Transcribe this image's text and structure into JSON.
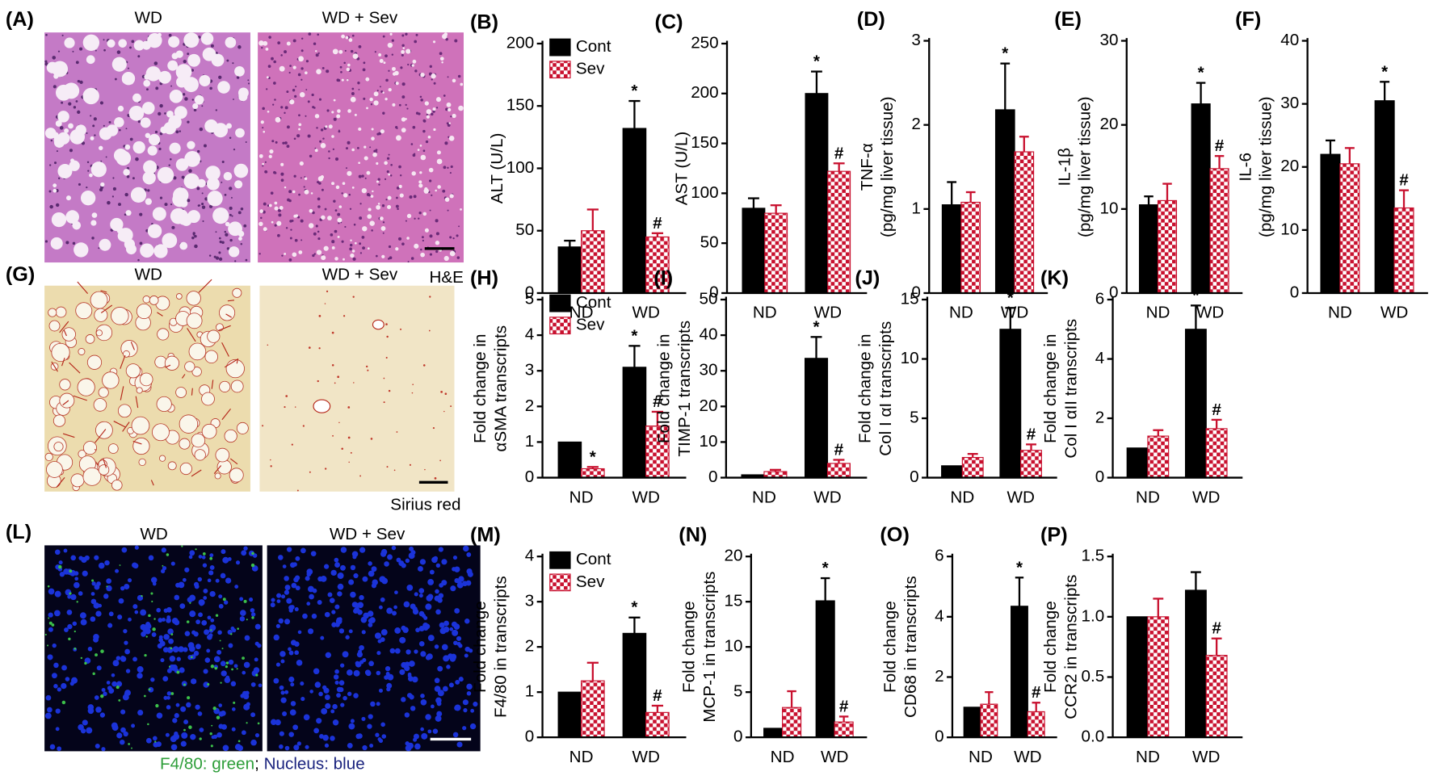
{
  "chart_data": [
    {
      "type": "bar",
      "panel": "(B)",
      "ylabel": [
        "ALT (U/L)"
      ],
      "categories": [
        "ND",
        "WD"
      ],
      "ylim": [
        0,
        200
      ],
      "yticks": [
        0,
        50,
        100,
        150,
        200
      ],
      "legend": "upper left",
      "series": [
        {
          "name": "Cont",
          "color": "#000000",
          "values": [
            37,
            132
          ],
          "errors": [
            5,
            22
          ],
          "markers": [
            null,
            "*"
          ]
        },
        {
          "name": "Sev",
          "color": "#c8102e",
          "values": [
            50,
            45
          ],
          "errors": [
            17,
            3
          ],
          "markers": [
            null,
            "#"
          ]
        }
      ]
    },
    {
      "type": "bar",
      "panel": "(C)",
      "ylabel": [
        "AST (U/L)"
      ],
      "categories": [
        "ND",
        "WD"
      ],
      "ylim": [
        0,
        250
      ],
      "yticks": [
        0,
        50,
        100,
        150,
        200,
        250
      ],
      "series": [
        {
          "color": "#000000",
          "values": [
            85,
            200
          ],
          "errors": [
            10,
            22
          ],
          "markers": [
            null,
            "*"
          ]
        },
        {
          "color": "#c8102e",
          "values": [
            80,
            122
          ],
          "errors": [
            8,
            8
          ],
          "markers": [
            null,
            "#"
          ]
        }
      ]
    },
    {
      "type": "bar",
      "panel": "(D)",
      "ylabel": [
        "TNF-α",
        "(pg/mg liver tissue)"
      ],
      "categories": [
        "ND",
        "WD"
      ],
      "ylim": [
        0,
        3
      ],
      "yticks": [
        0,
        1,
        2,
        3
      ],
      "series": [
        {
          "color": "#000000",
          "values": [
            1.05,
            2.18
          ],
          "errors": [
            0.27,
            0.55
          ],
          "markers": [
            null,
            "*"
          ]
        },
        {
          "color": "#c8102e",
          "values": [
            1.08,
            1.68
          ],
          "errors": [
            0.12,
            0.18
          ],
          "markers": [
            null,
            null
          ]
        }
      ]
    },
    {
      "type": "bar",
      "panel": "(E)",
      "ylabel": [
        "IL-1β",
        "(pg/mg liver tissue)"
      ],
      "categories": [
        "ND",
        "WD"
      ],
      "ylim": [
        0,
        30
      ],
      "yticks": [
        0,
        10,
        20,
        30
      ],
      "series": [
        {
          "color": "#000000",
          "values": [
            10.5,
            22.5
          ],
          "errors": [
            1,
            2.5
          ],
          "markers": [
            null,
            "*"
          ]
        },
        {
          "color": "#c8102e",
          "values": [
            11,
            14.8
          ],
          "errors": [
            2,
            1.5
          ],
          "markers": [
            null,
            "#"
          ]
        }
      ]
    },
    {
      "type": "bar",
      "panel": "(F)",
      "ylabel": [
        "IL-6",
        "(pg/mg liver tissue)"
      ],
      "categories": [
        "ND",
        "WD"
      ],
      "ylim": [
        0,
        40
      ],
      "yticks": [
        0,
        10,
        20,
        30,
        40
      ],
      "series": [
        {
          "color": "#000000",
          "values": [
            22,
            30.5
          ],
          "errors": [
            2.2,
            3
          ],
          "markers": [
            null,
            "*"
          ]
        },
        {
          "color": "#c8102e",
          "values": [
            20.5,
            13.5
          ],
          "errors": [
            2.5,
            2.8
          ],
          "markers": [
            null,
            "#"
          ]
        }
      ]
    },
    {
      "type": "bar",
      "panel": "(H)",
      "ylabel": [
        "Fold change in",
        "αSMA transcripts"
      ],
      "categories": [
        "ND",
        "WD"
      ],
      "ylim": [
        0,
        5
      ],
      "yticks": [
        0,
        1,
        2,
        3,
        4,
        5
      ],
      "legend": "upper left",
      "series": [
        {
          "name": "Cont",
          "color": "#000000",
          "values": [
            1,
            3.1
          ],
          "errors": [
            null,
            0.6
          ],
          "markers": [
            null,
            "*"
          ]
        },
        {
          "name": "Sev",
          "color": "#c8102e",
          "values": [
            0.25,
            1.45
          ],
          "errors": [
            0.05,
            0.4
          ],
          "markers": [
            "*",
            "#"
          ]
        }
      ]
    },
    {
      "type": "bar",
      "panel": "(I)",
      "ylabel": [
        "Fold change in",
        "TIMP-1 transcripts"
      ],
      "categories": [
        "ND",
        "WD"
      ],
      "ylim": [
        0,
        50
      ],
      "yticks": [
        0,
        10,
        20,
        30,
        40,
        50
      ],
      "series": [
        {
          "color": "#000000",
          "values": [
            0.8,
            33.5
          ],
          "errors": [
            null,
            6
          ],
          "markers": [
            null,
            "*"
          ]
        },
        {
          "color": "#c8102e",
          "values": [
            1.7,
            4
          ],
          "errors": [
            0.5,
            1
          ],
          "markers": [
            null,
            "#"
          ]
        }
      ]
    },
    {
      "type": "bar",
      "panel": "(J)",
      "ylabel": [
        "Fold change in",
        "Col I αI transcripts"
      ],
      "categories": [
        "ND",
        "WD"
      ],
      "ylim": [
        0,
        15
      ],
      "yticks": [
        0,
        5,
        10,
        15
      ],
      "series": [
        {
          "color": "#000000",
          "values": [
            1,
            12.5
          ],
          "errors": [
            null,
            1.8
          ],
          "markers": [
            null,
            "*"
          ]
        },
        {
          "color": "#c8102e",
          "values": [
            1.7,
            2.3
          ],
          "errors": [
            0.3,
            0.5
          ],
          "markers": [
            null,
            "#"
          ]
        }
      ]
    },
    {
      "type": "bar",
      "panel": "(K)",
      "ylabel": [
        "Fold change in",
        "Col I αII transcripts"
      ],
      "categories": [
        "ND",
        "WD"
      ],
      "ylim": [
        0,
        6
      ],
      "yticks": [
        0,
        2,
        4,
        6
      ],
      "series": [
        {
          "color": "#000000",
          "values": [
            1,
            5
          ],
          "errors": [
            null,
            0.8
          ],
          "markers": [
            null,
            "*"
          ]
        },
        {
          "color": "#c8102e",
          "values": [
            1.4,
            1.65
          ],
          "errors": [
            0.2,
            0.3
          ],
          "markers": [
            null,
            "#"
          ]
        }
      ]
    },
    {
      "type": "bar",
      "panel": "(M)",
      "ylabel": [
        "Fold change",
        "F4/80 in  transcripts"
      ],
      "categories": [
        "ND",
        "WD"
      ],
      "ylim": [
        0,
        4
      ],
      "yticks": [
        0,
        1,
        2,
        3,
        4
      ],
      "legend": "upper left",
      "series": [
        {
          "name": "Cont",
          "color": "#000000",
          "values": [
            1,
            2.3
          ],
          "errors": [
            null,
            0.35
          ],
          "markers": [
            null,
            "*"
          ]
        },
        {
          "name": "Sev",
          "color": "#c8102e",
          "values": [
            1.25,
            0.55
          ],
          "errors": [
            0.4,
            0.15
          ],
          "markers": [
            null,
            "#"
          ]
        }
      ]
    },
    {
      "type": "bar",
      "panel": "(N)",
      "ylabel": [
        "Fold change",
        "MCP-1 in  transcripts"
      ],
      "categories": [
        "ND",
        "WD"
      ],
      "ylim": [
        0,
        20
      ],
      "yticks": [
        0,
        5,
        10,
        15,
        20
      ],
      "series": [
        {
          "color": "#000000",
          "values": [
            1,
            15.1
          ],
          "errors": [
            null,
            2.5
          ],
          "markers": [
            null,
            "*"
          ]
        },
        {
          "color": "#c8102e",
          "values": [
            3.3,
            1.7
          ],
          "errors": [
            1.8,
            0.6
          ],
          "markers": [
            null,
            "#"
          ]
        }
      ]
    },
    {
      "type": "bar",
      "panel": "(O)",
      "ylabel": [
        "Fold change",
        "CD68 in  transcripts"
      ],
      "categories": [
        "ND",
        "WD"
      ],
      "ylim": [
        0,
        6
      ],
      "yticks": [
        0,
        2,
        4,
        6
      ],
      "series": [
        {
          "color": "#000000",
          "values": [
            1,
            4.35
          ],
          "errors": [
            null,
            0.95
          ],
          "markers": [
            null,
            "*"
          ]
        },
        {
          "color": "#c8102e",
          "values": [
            1.1,
            0.85
          ],
          "errors": [
            0.4,
            0.3
          ],
          "markers": [
            null,
            "#"
          ]
        }
      ]
    },
    {
      "type": "bar",
      "panel": "(P)",
      "ylabel": [
        "Fold change",
        "CCR2 in  transcripts"
      ],
      "categories": [
        "ND",
        "WD"
      ],
      "ylim": [
        0,
        1.5
      ],
      "yticks": [
        {
          "value": 0,
          "label": "0.0"
        },
        {
          "value": 0.5,
          "label": "0.5"
        },
        {
          "value": 1,
          "label": "1.0"
        },
        {
          "value": 1.5,
          "label": "1.5"
        }
      ],
      "series": [
        {
          "color": "#000000",
          "values": [
            1,
            1.22
          ],
          "errors": [
            null,
            0.15
          ],
          "markers": [
            null,
            null
          ]
        },
        {
          "color": "#c8102e",
          "values": [
            1,
            0.68
          ],
          "errors": [
            0.15,
            0.14
          ],
          "markers": [
            null,
            "#"
          ]
        }
      ]
    }
  ],
  "image_panels": [
    {
      "label": "(A)",
      "titles": [
        "WD",
        "WD + Sev"
      ],
      "stain": "H&E"
    },
    {
      "label": "(G)",
      "titles": [
        "WD",
        "WD + Sev"
      ],
      "stain": "Sirius red"
    },
    {
      "label": "(L)",
      "titles": [
        "WD",
        "WD + Sev"
      ],
      "caption": [
        "F4/80: green",
        "; ",
        "Nucleus: blue"
      ]
    }
  ]
}
